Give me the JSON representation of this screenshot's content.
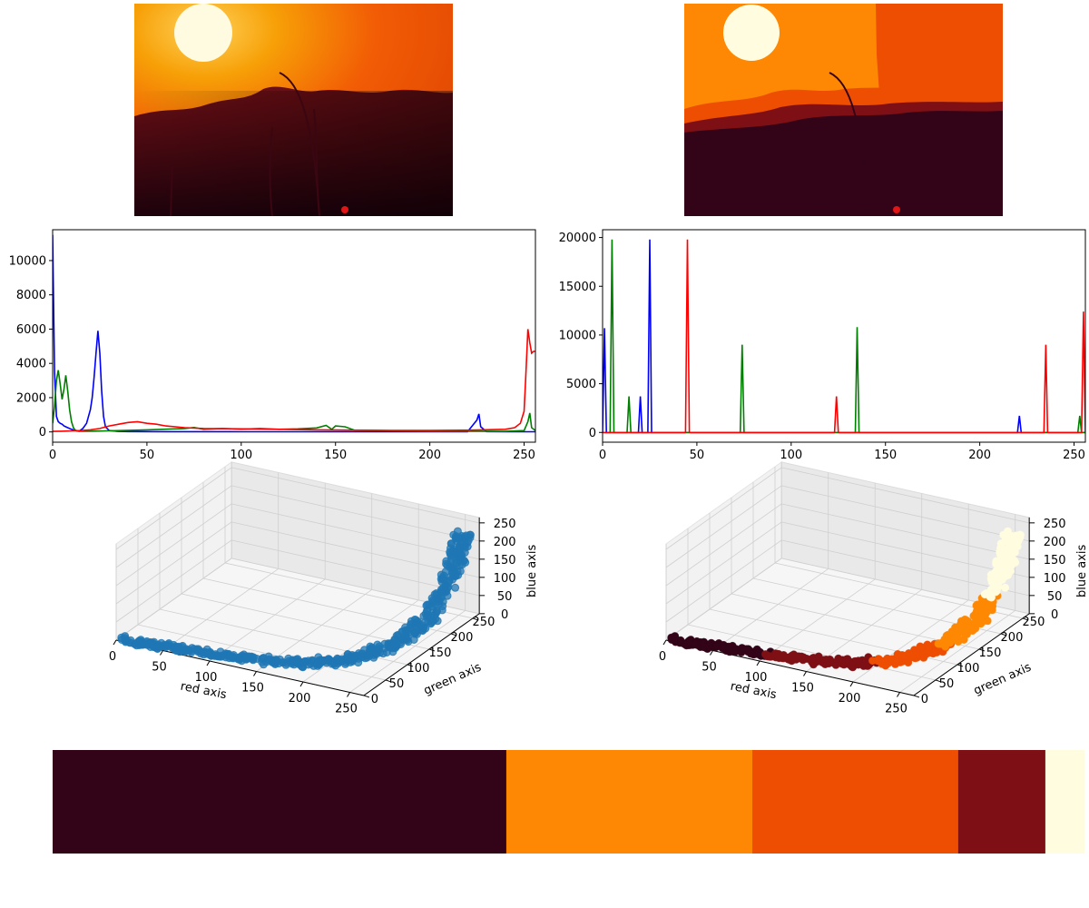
{
  "images": [
    {
      "kind": "photo",
      "palette": [
        "#fffbe0",
        "#f7a007",
        "#f25c05",
        "#7a1014",
        "#2c0412"
      ]
    },
    {
      "kind": "quantized",
      "palette": [
        "#fffce0",
        "#fe8803",
        "#ed4e02",
        "#7e1015",
        "#330418"
      ]
    }
  ],
  "chart_data": [
    {
      "type": "line",
      "title": "",
      "xlim": [
        0,
        256
      ],
      "ylim": [
        -600,
        11800
      ],
      "xticks": [
        0,
        50,
        100,
        150,
        200,
        250
      ],
      "xtick_labels": [
        "0",
        "50",
        "100",
        "150",
        "200",
        "250"
      ],
      "yticks": [
        0,
        2000,
        4000,
        6000,
        8000,
        10000
      ],
      "ytick_labels": [
        "0",
        "2000",
        "4000",
        "6000",
        "8000",
        "10000"
      ],
      "grid": false,
      "series": [
        {
          "color": "#0000ff",
          "x": [
            0,
            1,
            2,
            3,
            4,
            5,
            6,
            8,
            10,
            12,
            14,
            16,
            18,
            20,
            21,
            22,
            23,
            24,
            25,
            26,
            27,
            28,
            30,
            35,
            40,
            60,
            100,
            150,
            200,
            220,
            225,
            226,
            227,
            230,
            240,
            250,
            256
          ],
          "y": [
            11500,
            3500,
            900,
            600,
            500,
            450,
            350,
            250,
            150,
            80,
            40,
            200,
            500,
            1300,
            2000,
            3200,
            4600,
            5900,
            4600,
            2400,
            900,
            300,
            80,
            30,
            20,
            15,
            10,
            10,
            10,
            10,
            700,
            1050,
            300,
            20,
            10,
            10,
            10
          ]
        },
        {
          "color": "#008000",
          "x": [
            0,
            1,
            2,
            3,
            4,
            5,
            6,
            7,
            8,
            9,
            10,
            11,
            12,
            14,
            16,
            20,
            30,
            50,
            70,
            75,
            80,
            90,
            100,
            110,
            120,
            130,
            140,
            145,
            148,
            150,
            155,
            160,
            200,
            240,
            250,
            252,
            253,
            254,
            256
          ],
          "y": [
            500,
            1500,
            3000,
            3600,
            2800,
            1900,
            2500,
            3300,
            2400,
            1300,
            600,
            250,
            100,
            40,
            40,
            40,
            60,
            120,
            200,
            260,
            150,
            200,
            160,
            200,
            150,
            180,
            230,
            380,
            150,
            350,
            300,
            100,
            40,
            30,
            80,
            600,
            1100,
            250,
            80
          ]
        },
        {
          "color": "#ff0000",
          "x": [
            0,
            5,
            10,
            15,
            20,
            25,
            30,
            35,
            40,
            45,
            50,
            55,
            60,
            70,
            80,
            100,
            120,
            140,
            160,
            180,
            200,
            220,
            240,
            245,
            248,
            250,
            251,
            252,
            253,
            254,
            255,
            256
          ],
          "y": [
            30,
            40,
            60,
            80,
            120,
            200,
            350,
            450,
            550,
            600,
            500,
            450,
            350,
            250,
            200,
            180,
            150,
            120,
            100,
            90,
            90,
            100,
            150,
            250,
            500,
            1200,
            3500,
            6000,
            5200,
            4600,
            4700,
            4700
          ]
        }
      ]
    },
    {
      "type": "line",
      "title": "",
      "xlim": [
        0,
        256
      ],
      "ylim": [
        -1000,
        20800
      ],
      "xticks": [
        0,
        50,
        100,
        150,
        200,
        250
      ],
      "xtick_labels": [
        "0",
        "50",
        "100",
        "150",
        "200",
        "250"
      ],
      "yticks": [
        0,
        5000,
        10000,
        15000,
        20000
      ],
      "ytick_labels": [
        "0",
        "5000",
        "10000",
        "15000",
        "20000"
      ],
      "grid": false,
      "series": [
        {
          "color": "#0000ff",
          "spikes": [
            [
              1,
              10700
            ],
            [
              20,
              3700
            ],
            [
              25,
              19800
            ],
            [
              221,
              1700
            ]
          ]
        },
        {
          "color": "#008000",
          "spikes": [
            [
              5,
              19800
            ],
            [
              14,
              3700
            ],
            [
              74,
              9000
            ],
            [
              135,
              10800
            ],
            [
              253,
              1700
            ]
          ]
        },
        {
          "color": "#ff0000",
          "spikes": [
            [
              45,
              19800
            ],
            [
              124,
              3700
            ],
            [
              235,
              9000
            ],
            [
              255,
              12400
            ]
          ]
        }
      ]
    },
    {
      "type": "scatter",
      "projection": "3d",
      "xlabel": "red axis",
      "ylabel": "green axis",
      "zlabel": "blue axis",
      "xticks": [
        0,
        50,
        100,
        150,
        200,
        250
      ],
      "yticks": [
        0,
        50,
        100,
        150,
        200,
        250
      ],
      "zticks": [
        0,
        50,
        100,
        150,
        200,
        250
      ],
      "color": "#1f77b4",
      "curve": [
        [
          10,
          0,
          5
        ],
        [
          60,
          5,
          10
        ],
        [
          120,
          10,
          15
        ],
        [
          180,
          25,
          20
        ],
        [
          220,
          60,
          20
        ],
        [
          245,
          120,
          30
        ],
        [
          253,
          180,
          60
        ],
        [
          255,
          230,
          150
        ],
        [
          255,
          248,
          230
        ]
      ]
    },
    {
      "type": "scatter",
      "projection": "3d",
      "xlabel": "red axis",
      "ylabel": "green axis",
      "zlabel": "blue axis",
      "xticks": [
        0,
        50,
        100,
        150,
        200,
        250
      ],
      "yticks": [
        0,
        50,
        100,
        150,
        200,
        250
      ],
      "zticks": [
        0,
        50,
        100,
        150,
        200,
        250
      ],
      "clusters": [
        {
          "color": "#330418",
          "t": [
            0.0,
            0.22
          ]
        },
        {
          "color": "#7e1015",
          "t": [
            0.22,
            0.45
          ]
        },
        {
          "color": "#ed4e02",
          "t": [
            0.45,
            0.62
          ]
        },
        {
          "color": "#fe8803",
          "t": [
            0.62,
            0.8
          ]
        },
        {
          "color": "#fffce0",
          "t": [
            0.8,
            1.0
          ]
        }
      ],
      "curve": [
        [
          10,
          0,
          5
        ],
        [
          60,
          5,
          10
        ],
        [
          120,
          10,
          15
        ],
        [
          180,
          25,
          20
        ],
        [
          220,
          60,
          20
        ],
        [
          245,
          120,
          30
        ],
        [
          253,
          180,
          60
        ],
        [
          255,
          230,
          150
        ],
        [
          255,
          248,
          230
        ]
      ]
    },
    {
      "type": "bar",
      "stacked_proportion": true,
      "segments": [
        {
          "color": "#330418",
          "value": 0.4397
        },
        {
          "color": "#fe8803",
          "value": 0.2384
        },
        {
          "color": "#ed4e02",
          "value": 0.1996
        },
        {
          "color": "#7e1015",
          "value": 0.0844
        },
        {
          "color": "#fffce0",
          "value": 0.0379
        }
      ]
    }
  ]
}
